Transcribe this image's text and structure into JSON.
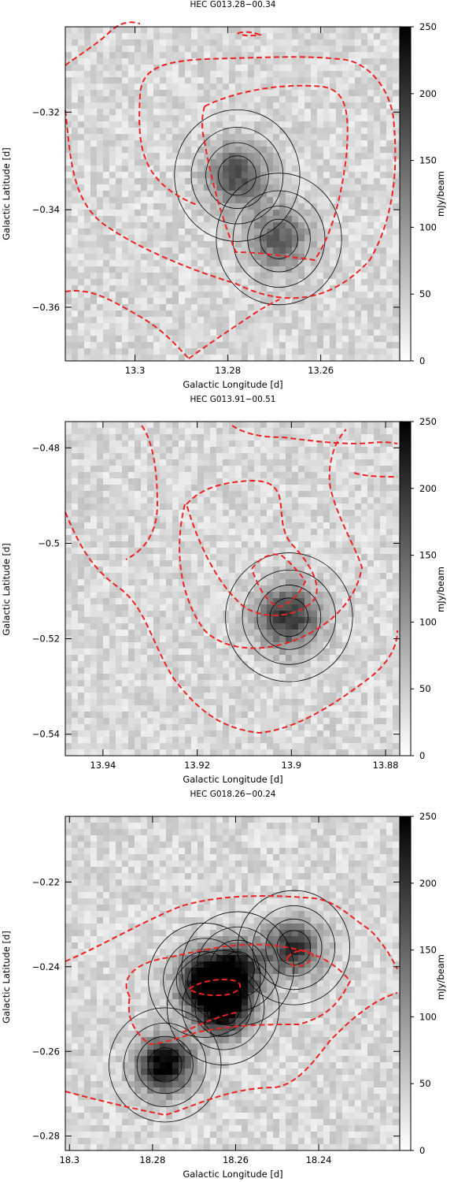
{
  "figure": {
    "panels": [
      {
        "title": "HEC G013.28−00.34",
        "xlabel": "Galactic Longitude [d]",
        "ylabel": "Galactic Latitude [d]",
        "xticks": [
          "13.3",
          "13.28",
          "13.26"
        ],
        "yticks": [
          "−0.32",
          "−0.34",
          "−0.36"
        ],
        "colorbar_label": "mJy/beam",
        "colorbar_ticks": [
          "250",
          "200",
          "150",
          "100",
          "50",
          "0"
        ]
      },
      {
        "title": "HEC G013.91−00.51",
        "xlabel": "Galactic Longitude [d]",
        "ylabel": "Galactic Latitude [d]",
        "xticks": [
          "13.94",
          "13.92",
          "13.9",
          "13.88"
        ],
        "yticks": [
          "−0.48",
          "−0.5",
          "−0.52",
          "−0.54"
        ],
        "colorbar_label": "mJy/beam",
        "colorbar_ticks": [
          "250",
          "200",
          "150",
          "100",
          "50",
          "0"
        ]
      },
      {
        "title": "HEC G018.26−00.24",
        "xlabel": "Galactic Longitude [d]",
        "ylabel": "Galactic Latitude [d]",
        "xticks": [
          "18.3",
          "18.28",
          "18.26",
          "18.24"
        ],
        "yticks": [
          "−0.22",
          "−0.24",
          "−0.26",
          "−0.28"
        ],
        "colorbar_label": "mJy/beam",
        "colorbar_ticks": [
          "250",
          "200",
          "150",
          "100",
          "50",
          "0"
        ]
      }
    ]
  },
  "chart_data": [
    {
      "type": "heatmap",
      "title": "HEC G013.28−00.34",
      "xlabel": "Galactic Longitude [d]",
      "ylabel": "Galactic Latitude [d]",
      "xlim": [
        13.315,
        13.243
      ],
      "ylim": [
        -0.371,
        -0.3025
      ],
      "colorbar": {
        "label": "mJy/beam",
        "range": [
          0,
          250
        ],
        "colormap": "white-to-black"
      },
      "overlay": {
        "style": "red dashed contours",
        "color": "#ee2222"
      },
      "peaks": [
        {
          "l": 13.278,
          "b": -0.333,
          "value": 140
        },
        {
          "l": 13.269,
          "b": -0.346,
          "value": 120
        }
      ]
    },
    {
      "type": "heatmap",
      "title": "HEC G013.91−00.51",
      "xlabel": "Galactic Longitude [d]",
      "ylabel": "Galactic Latitude [d]",
      "xlim": [
        13.948,
        13.877
      ],
      "ylim": [
        -0.5445,
        -0.4745
      ],
      "colorbar": {
        "label": "mJy/beam",
        "range": [
          0,
          250
        ],
        "colormap": "white-to-black"
      },
      "overlay": {
        "style": "red dashed contours",
        "color": "#ee2222"
      },
      "peaks": [
        {
          "l": 13.9005,
          "b": -0.5155,
          "value": 170
        }
      ]
    },
    {
      "type": "heatmap",
      "title": "HEC G018.26−00.24",
      "xlabel": "Galactic Longitude [d]",
      "ylabel": "Galactic Latitude [d]",
      "xlim": [
        18.301,
        18.2205
      ],
      "ylim": [
        -0.2834,
        -0.2045
      ],
      "colorbar": {
        "label": "mJy/beam",
        "range": [
          0,
          250
        ],
        "colormap": "white-to-black"
      },
      "overlay": {
        "style": "red dashed contours",
        "color": "#ee2222"
      },
      "peaks": [
        {
          "l": 18.277,
          "b": -0.2632,
          "value": 230
        },
        {
          "l": 18.263,
          "b": -0.2497,
          "value": 240
        },
        {
          "l": 18.2675,
          "b": -0.2432,
          "value": 220
        },
        {
          "l": 18.2595,
          "b": -0.2405,
          "value": 180
        },
        {
          "l": 18.246,
          "b": -0.2355,
          "value": 170
        }
      ]
    }
  ]
}
